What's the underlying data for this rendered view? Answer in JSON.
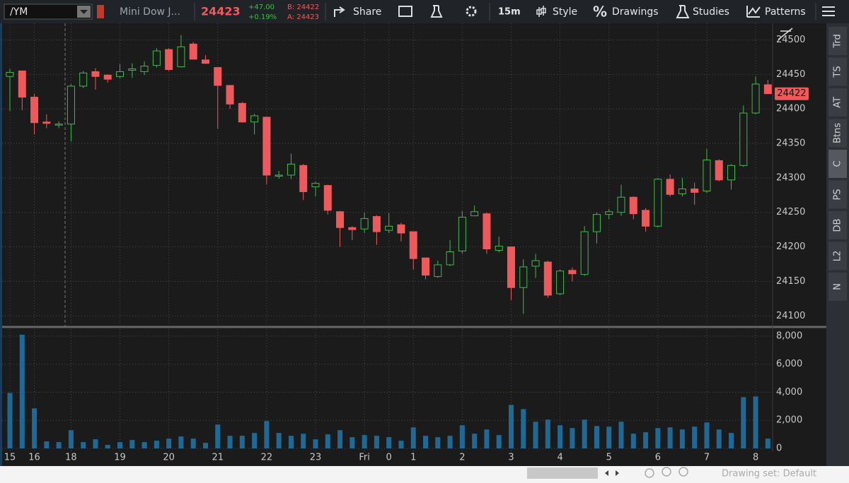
{
  "toolbar": {
    "symbol": "/YM",
    "description": "Mini Dow J...",
    "last": "24423",
    "change": "+47.00",
    "change_pct": "+0.19%",
    "bid": "B: 24422",
    "ask": "A: 24423",
    "share": "Share",
    "interval": "15m",
    "style": "Style",
    "drawings": "Drawings",
    "studies": "Studies",
    "patterns": "Patterns"
  },
  "side_tabs": [
    "Trd",
    "TS",
    "AT",
    "Btns",
    "C",
    "PS",
    "DB",
    "L2",
    "N"
  ],
  "footer": {
    "drawing_set": "Drawing set: Default"
  },
  "chart_data": {
    "type": "candlestick",
    "categories": [
      "15",
      null,
      "16",
      null,
      null,
      "18",
      null,
      null,
      null,
      "19",
      null,
      null,
      null,
      "20",
      null,
      null,
      null,
      "21",
      null,
      null,
      null,
      "22",
      null,
      null,
      null,
      "23",
      null,
      null,
      null,
      "Fri",
      null,
      "0",
      null,
      "1",
      null,
      null,
      null,
      "2",
      null,
      null,
      null,
      "3",
      null,
      null,
      null,
      "4",
      null,
      null,
      null,
      "5",
      null,
      null,
      null,
      "6",
      null,
      null,
      null,
      "7",
      null,
      null,
      null,
      "8",
      null
    ],
    "open": [
      24447,
      24455,
      24417,
      24381,
      24377,
      24378,
      24433,
      24454,
      24449,
      24447,
      24456,
      24454,
      24463,
      24486,
      24461,
      24494,
      24471,
      24460,
      24434,
      24408,
      24381,
      24388,
      24303,
      24304,
      24318,
      24287,
      24289,
      24251,
      24228,
      24226,
      24244,
      24224,
      24232,
      24222,
      24184,
      24157,
      24174,
      24194,
      24245,
      24248,
      24195,
      24200,
      24141,
      24172,
      24178,
      24132,
      24166,
      24160,
      24222,
      24247,
      24250,
      24272,
      24253,
      24230,
      24298,
      24277,
      24284,
      24281,
      24325,
      24297,
      24318,
      24394,
      24435
    ],
    "high": [
      24458,
      24455,
      24422,
      24392,
      24382,
      24436,
      24455,
      24459,
      24450,
      24465,
      24466,
      24469,
      24488,
      24488,
      24507,
      24497,
      24478,
      24460,
      24434,
      24410,
      24393,
      24389,
      24310,
      24335,
      24320,
      24295,
      24290,
      24252,
      24230,
      24250,
      24246,
      24249,
      24235,
      24222,
      24184,
      24180,
      24210,
      24252,
      24260,
      24250,
      24215,
      24200,
      24182,
      24190,
      24180,
      24167,
      24170,
      24230,
      24250,
      24255,
      24290,
      24273,
      24256,
      24300,
      24305,
      24300,
      24293,
      24342,
      24327,
      24320,
      24405,
      24447,
      24442
    ],
    "low": [
      24397,
      24398,
      24363,
      24372,
      24372,
      24353,
      24430,
      24428,
      24438,
      24444,
      24445,
      24449,
      24460,
      24455,
      24460,
      24472,
      24465,
      24371,
      24400,
      24380,
      24363,
      24291,
      24299,
      24298,
      24268,
      24273,
      24247,
      24200,
      24210,
      24220,
      24203,
      24220,
      24208,
      24167,
      24153,
      24155,
      24172,
      24190,
      24247,
      24190,
      24192,
      24123,
      24103,
      24155,
      24126,
      24130,
      24150,
      24158,
      24205,
      24240,
      24245,
      24240,
      24222,
      24228,
      24273,
      24273,
      24261,
      24278,
      24295,
      24283,
      24316,
      24392,
      24422
    ],
    "close": [
      24453,
      24417,
      24380,
      24379,
      24378,
      24433,
      24452,
      24447,
      24443,
      24454,
      24458,
      24462,
      24484,
      24457,
      24490,
      24472,
      24466,
      24434,
      24407,
      24381,
      24390,
      24304,
      24304,
      24320,
      24280,
      24292,
      24253,
      24228,
      24225,
      24241,
      24222,
      24230,
      24220,
      24183,
      24159,
      24174,
      24193,
      24243,
      24251,
      24197,
      24201,
      24141,
      24171,
      24180,
      24130,
      24165,
      24161,
      24222,
      24247,
      24251,
      24272,
      24248,
      24230,
      24298,
      24276,
      24284,
      24279,
      24326,
      24297,
      24318,
      24394,
      24436,
      24422
    ],
    "ylim": [
      24087,
      24522
    ],
    "yticks": [
      24100,
      24150,
      24200,
      24250,
      24300,
      24350,
      24400,
      24450,
      24500
    ],
    "up_color": "#3dbb4c",
    "down_color": "#f0595c",
    "grid": true,
    "volume": {
      "type": "bar",
      "color": "#1d6a98",
      "values": [
        3950,
        8100,
        2850,
        500,
        450,
        1300,
        450,
        650,
        250,
        450,
        600,
        450,
        550,
        700,
        850,
        700,
        400,
        1700,
        900,
        900,
        1100,
        1950,
        1100,
        900,
        1050,
        650,
        1000,
        1300,
        800,
        950,
        900,
        800,
        550,
        1500,
        900,
        800,
        900,
        1650,
        1050,
        1350,
        950,
        3100,
        2800,
        1900,
        2050,
        1650,
        1450,
        2050,
        1600,
        1550,
        1900,
        1050,
        1150,
        1450,
        1500,
        1350,
        1550,
        1850,
        1350,
        1100,
        3650,
        3700,
        700
      ],
      "ylim": [
        0,
        8500
      ],
      "yticks": [
        0,
        {
          "value": 2000,
          "label": "2,000"
        },
        {
          "value": 4000,
          "label": "4,000"
        },
        {
          "value": 6000,
          "label": "6,000"
        },
        {
          "value": 8000,
          "label": "8,000"
        }
      ]
    }
  }
}
